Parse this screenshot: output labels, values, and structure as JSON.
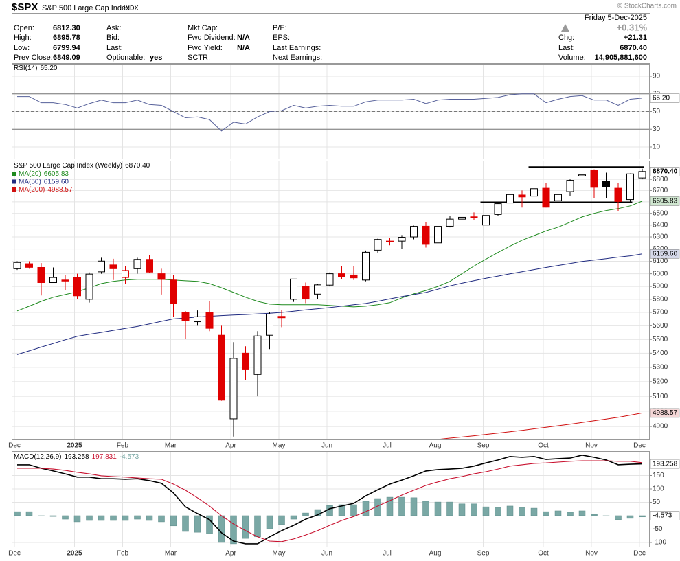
{
  "header": {
    "symbol": "$SPX",
    "name": "S&P 500 Large Cap Index",
    "exchange": "INDX",
    "credit": "© StockCharts.com",
    "date": "Friday 5-Dec-2025",
    "change_pct": "+0.31%",
    "columns": [
      [
        [
          "Open:",
          "6812.30"
        ],
        [
          "High:",
          "6895.78"
        ],
        [
          "Low:",
          "6799.94"
        ],
        [
          "Prev Close:",
          "6849.09"
        ]
      ],
      [
        [
          "Ask:"
        ],
        [
          "Bid:"
        ],
        [
          "Last:"
        ],
        [
          "Optionable:",
          "yes"
        ]
      ],
      [
        [
          "Mkt Cap:"
        ],
        [
          "Fwd Dividend:",
          "N/A"
        ],
        [
          "Fwd Yield:",
          "N/A"
        ],
        [
          "SCTR:"
        ]
      ],
      [
        [
          "P/E:"
        ],
        [
          "EPS:"
        ],
        [
          "Last Earnings:"
        ],
        [
          "Next Earnings:"
        ]
      ],
      [
        [
          "Chg:",
          "+21.31"
        ],
        [
          "Last:",
          "6870.40"
        ],
        [
          "Volume:",
          "14,905,881,600"
        ]
      ]
    ]
  },
  "chart_data": [
    {
      "type": "line",
      "title": "RSI(14)",
      "last_label": "65.20",
      "color": "#56609a",
      "values": [
        67,
        67,
        60,
        60,
        58,
        54,
        59,
        63,
        60,
        60,
        63,
        58,
        57,
        50,
        43,
        44,
        41,
        28,
        38,
        36,
        44,
        50,
        51,
        57,
        54,
        56,
        57,
        56,
        56,
        61,
        63,
        63,
        63,
        64,
        59,
        63,
        64,
        64,
        64,
        65,
        66,
        69,
        70,
        70,
        60,
        64,
        67,
        68,
        63,
        63,
        57,
        64,
        65.2
      ],
      "ylim": [
        -4,
        104
      ],
      "yticks": [
        10,
        30,
        50,
        70,
        90
      ],
      "overbought": 70,
      "oversold": 30,
      "midline": 50
    },
    {
      "type": "candlestick",
      "title": "S&P 500 Large Cap Index (Weekly)",
      "last_label": "6870.40",
      "categories": [
        "Dec",
        null,
        null,
        null,
        null,
        "2025",
        null,
        null,
        null,
        "Feb",
        null,
        null,
        null,
        "Mar",
        null,
        null,
        null,
        null,
        "Apr",
        null,
        null,
        null,
        "May",
        null,
        null,
        null,
        "Jun",
        null,
        null,
        null,
        null,
        "Jul",
        null,
        null,
        null,
        "Aug",
        null,
        null,
        null,
        "Sep",
        null,
        null,
        null,
        null,
        "Oct",
        null,
        null,
        null,
        "Nov",
        null,
        null,
        null,
        "Dec"
      ],
      "open": [
        6040,
        6080,
        6050,
        5930,
        5950,
        5970,
        5800,
        6015,
        6070,
        5970,
        6040,
        6115,
        6000,
        5950,
        5700,
        5630,
        5700,
        5530,
        4950,
        5400,
        5250,
        5530,
        5670,
        5800,
        5900,
        5840,
        5910,
        6000,
        5990,
        5950,
        6190,
        6265,
        6265,
        6300,
        6390,
        6250,
        6390,
        6450,
        6470,
        6400,
        6490,
        6590,
        6660,
        6650,
        6720,
        6610,
        6690,
        6830,
        6880,
        6780,
        6720,
        6620,
        6812.3
      ],
      "high": [
        6100,
        6100,
        6085,
        6050,
        5990,
        6000,
        6010,
        6128,
        6120,
        6060,
        6128,
        6147,
        6040,
        5990,
        5710,
        5715,
        5786,
        5600,
        5480,
        5450,
        5560,
        5700,
        5720,
        5960,
        5930,
        5920,
        6010,
        6060,
        6060,
        6187,
        6285,
        6290,
        6315,
        6395,
        6427,
        6395,
        6480,
        6480,
        6508,
        6532,
        6600,
        6672,
        6700,
        6750,
        6764,
        6700,
        6800,
        6920,
        6890,
        6860,
        6770,
        6853,
        6895.78
      ],
      "low": [
        6030,
        6040,
        5830,
        5930,
        5870,
        5800,
        5775,
        6000,
        5950,
        5920,
        6000,
        6008,
        5837,
        5666,
        5505,
        5600,
        5560,
        5070,
        4835,
        5210,
        5100,
        5430,
        5590,
        5780,
        5770,
        5800,
        5900,
        5960,
        5950,
        5940,
        6170,
        6230,
        6200,
        6280,
        6212,
        6240,
        6380,
        6343,
        6440,
        6360,
        6480,
        6570,
        6550,
        6640,
        6550,
        6550,
        6650,
        6790,
        6630,
        6630,
        6521,
        6600,
        6799.94
      ],
      "close": [
        6090,
        6051,
        5930,
        5970,
        5942,
        5827,
        5997,
        6101,
        6040,
        6026,
        6115,
        6013,
        5955,
        5770,
        5639,
        5667,
        5581,
        5074,
        5363,
        5283,
        5525,
        5687,
        5660,
        5958,
        5802,
        5912,
        6000,
        5977,
        5967,
        6173,
        6279,
        6260,
        6297,
        6389,
        6238,
        6389,
        6450,
        6466,
        6460,
        6482,
        6584,
        6664,
        6643,
        6716,
        6553,
        6664,
        6791,
        6840,
        6728,
        6734,
        6603,
        6849,
        6870.4
      ],
      "up_color": "#000000",
      "down_color": "#e00000",
      "hollow_fill": "#ffffff",
      "series": [
        {
          "name": "MA(20)",
          "last_label": "6605.83",
          "color": "#1e8a1e",
          "label_color": "#cfe6cf",
          "values": [
            5711,
            5747,
            5784,
            5816,
            5837,
            5858,
            5889,
            5922,
            5939,
            5950,
            5956,
            5956,
            5956,
            5950,
            5944,
            5939,
            5922,
            5889,
            5853,
            5816,
            5784,
            5763,
            5758,
            5758,
            5758,
            5758,
            5753,
            5747,
            5742,
            5747,
            5758,
            5774,
            5811,
            5842,
            5868,
            5900,
            5939,
            6000,
            6061,
            6117,
            6171,
            6224,
            6272,
            6311,
            6350,
            6382,
            6424,
            6469,
            6500,
            6524,
            6541,
            6565,
            6605.83
          ]
        },
        {
          "name": "MA(50)",
          "last_label": "6159.60",
          "color": "#1f2a80",
          "label_color": "#d6d9ea",
          "values": [
            5390,
            5417,
            5444,
            5470,
            5497,
            5522,
            5537,
            5551,
            5566,
            5580,
            5595,
            5614,
            5633,
            5651,
            5658,
            5665,
            5671,
            5676,
            5680,
            5684,
            5689,
            5693,
            5700,
            5709,
            5719,
            5728,
            5737,
            5747,
            5758,
            5768,
            5785,
            5803,
            5821,
            5837,
            5853,
            5878,
            5904,
            5925,
            5945,
            5964,
            5981,
            5999,
            6016,
            6033,
            6050,
            6066,
            6082,
            6098,
            6110,
            6121,
            6133,
            6144,
            6159.6
          ]
        },
        {
          "name": "MA(200)",
          "last_label": "4988.57",
          "color": "#d01010",
          "label_color": "#f4d6d6",
          "values": [
            null,
            null,
            null,
            null,
            null,
            null,
            null,
            null,
            null,
            null,
            null,
            null,
            null,
            null,
            null,
            null,
            null,
            null,
            null,
            null,
            null,
            null,
            null,
            null,
            null,
            null,
            null,
            null,
            null,
            null,
            null,
            null,
            null,
            null,
            4810,
            4817,
            4825,
            4832,
            4840,
            4849,
            4857,
            4866,
            4875,
            4885,
            4895,
            4905,
            4915,
            4926,
            4937,
            4949,
            4960,
            4974,
            4988.57
          ]
        }
      ],
      "levels": [
        {
          "value": 6910,
          "from": 43,
          "to": 52
        },
        {
          "value": 6595,
          "from": 39,
          "to": 51
        }
      ],
      "log": true,
      "ylim": [
        4812,
        6970
      ],
      "yticks": [
        4900,
        5000,
        5100,
        5200,
        5300,
        5400,
        5500,
        5600,
        5700,
        5800,
        5900,
        6000,
        6100,
        6200,
        6300,
        6400,
        6500,
        6600,
        6700,
        6800
      ]
    },
    {
      "type": "macd",
      "title": "MACD(12,26,9)",
      "series": [
        {
          "last_label": "193.258",
          "color": "#000000",
          "boxed": true,
          "values": [
            190,
            190,
            177,
            167,
            156,
            144,
            144,
            138,
            138,
            136,
            138,
            131,
            121,
            85,
            33,
            8,
            -15,
            -64,
            -95,
            -105,
            -105,
            -79,
            -56,
            -36,
            -13,
            3,
            26,
            36,
            46,
            74,
            97,
            118,
            133,
            149,
            167,
            172,
            174,
            177,
            185,
            197,
            208,
            221,
            218,
            221,
            210,
            213,
            215,
            226,
            218,
            208,
            190,
            192,
            193.258
          ]
        },
        {
          "last_label": "197.831",
          "color": "#c8102e",
          "boxed": false,
          "values": [
            177,
            177,
            177,
            174,
            169,
            162,
            156,
            149,
            146,
            144,
            141,
            138,
            136,
            118,
            95,
            67,
            36,
            0,
            -31,
            -56,
            -79,
            -95,
            -97,
            -87,
            -72,
            -56,
            -36,
            -18,
            -3,
            15,
            36,
            56,
            77,
            95,
            113,
            126,
            138,
            146,
            156,
            164,
            174,
            185,
            190,
            195,
            197,
            200,
            203,
            205,
            205,
            205,
            203,
            203,
            197.831
          ]
        }
      ],
      "histogram": {
        "last_label": "-4.573",
        "color": "#7aa8a5",
        "boxed": true,
        "values": [
          15,
          15,
          0,
          -3,
          -13,
          -23,
          -18,
          -18,
          -18,
          -18,
          -13,
          -18,
          -23,
          -38,
          -59,
          -62,
          -67,
          -100,
          -105,
          -85,
          -79,
          -49,
          -33,
          -13,
          10,
          23,
          38,
          41,
          41,
          54,
          64,
          69,
          69,
          67,
          54,
          51,
          51,
          44,
          44,
          33,
          31,
          36,
          31,
          28,
          15,
          18,
          13,
          18,
          5,
          0,
          -15,
          -10,
          -4.573
        ]
      },
      "ylim": [
        -118,
        241
      ],
      "yticks": [
        -100,
        -50,
        50,
        100,
        150
      ]
    }
  ]
}
